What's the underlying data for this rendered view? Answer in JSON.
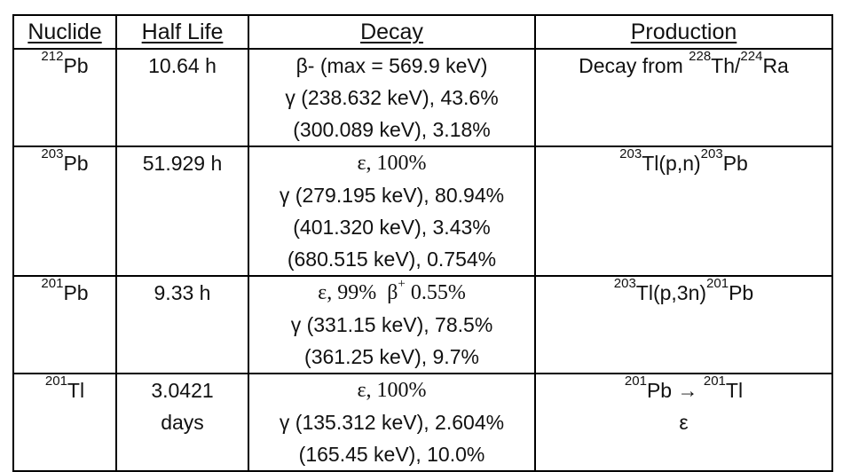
{
  "headers": {
    "nuclide": "Nuclide",
    "half_life": "Half Life",
    "decay": "Decay",
    "production": "Production"
  },
  "rows": [
    {
      "nuclide": {
        "mass": "212",
        "symbol": "Pb"
      },
      "half_life": [
        "10.64 h"
      ],
      "decay": [
        "β- (max = 569.9 keV)",
        "γ (238.632 keV), 43.6%",
        "(300.089 keV), 3.18%"
      ],
      "production": {
        "prefix": "Decay from ",
        "m1": "228",
        "s1": "Th/",
        "m2": "224",
        "s2": "Ra"
      }
    },
    {
      "nuclide": {
        "mass": "203",
        "symbol": "Pb"
      },
      "half_life": [
        "51.929 h"
      ],
      "decay": [
        "ε, 100%",
        "γ (279.195 keV), 80.94%",
        "(401.320 keV), 3.43%",
        "(680.515 keV), 0.754%"
      ],
      "production": {
        "m1": "203",
        "s1": "Tl(p,n)",
        "m2": "203",
        "s2": "Pb"
      }
    },
    {
      "nuclide": {
        "mass": "201",
        "symbol": "Pb"
      },
      "half_life": [
        "9.33 h"
      ],
      "decay": [
        "ε, 99%  β",
        "+",
        " 0.55%",
        "γ (331.15 keV), 78.5%",
        "(361.25 keV), 9.7%"
      ],
      "production": {
        "m1": "203",
        "s1": "Tl(p,3n)",
        "m2": "201",
        "s2": "Pb"
      }
    },
    {
      "nuclide": {
        "mass": "201",
        "symbol": "Tl"
      },
      "half_life": [
        "3.0421",
        "days"
      ],
      "decay": [
        "ε, 100%",
        "γ (135.312 keV), 2.604%",
        "(165.45 keV), 10.0%"
      ],
      "production": {
        "m1": "201",
        "s1": "Pb ",
        "arrow": "→",
        "m2": "201",
        "s2": "Tl",
        "line2": "ε"
      }
    }
  ]
}
